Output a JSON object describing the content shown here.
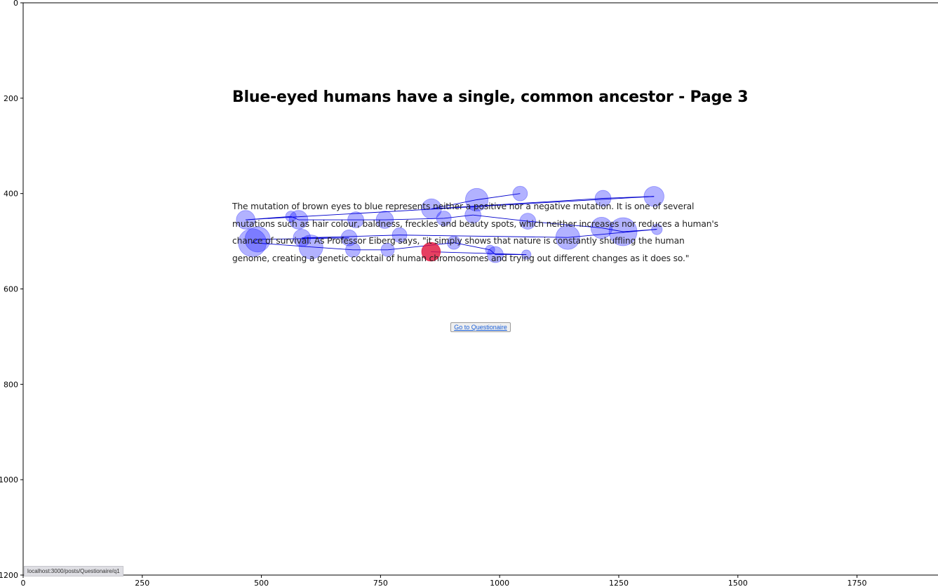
{
  "page": {
    "title": "Blue-eyed humans have a single, common ancestor - Page 3",
    "paragraph": "The mutation of brown eyes to blue represents neither a positive nor a negative mutation. It is one of several mutations such as hair colour, baldness, freckles and beauty spots, which neither increases nor reduces a human's chance of survival. As Professor Eiberg says, \"it simply shows that nature is constantly shuffling the human genome, creating a genetic cocktail of human chromosomes and trying out different changes as it does so.\"",
    "button_label": "Go to Questionaire",
    "status_url": "localhost:3000/posts/Questionaire/q1"
  },
  "chart_data": {
    "type": "scatter",
    "title": "",
    "xlabel": "",
    "ylabel": "",
    "xlim": [
      0,
      1920
    ],
    "ylim": [
      1200,
      0
    ],
    "x_ticks": [
      0,
      250,
      500,
      750,
      1000,
      1250,
      1500,
      1750
    ],
    "y_ticks": [
      0,
      200,
      400,
      600,
      800,
      1000,
      1200
    ],
    "grid": false,
    "colors": {
      "fixation": "#0000ff",
      "fixation_alpha": 0.3,
      "last_fixation": "#e0103a",
      "path": "#0000cc"
    },
    "fixations": [
      {
        "x": 1043,
        "y": 400,
        "r": 11
      },
      {
        "x": 952,
        "y": 413,
        "r": 17
      },
      {
        "x": 857,
        "y": 432,
        "r": 15
      },
      {
        "x": 1217,
        "y": 410,
        "r": 12
      },
      {
        "x": 1324,
        "y": 406,
        "r": 15
      },
      {
        "x": 467,
        "y": 455,
        "r": 14
      },
      {
        "x": 562,
        "y": 448,
        "r": 8
      },
      {
        "x": 578,
        "y": 455,
        "r": 14
      },
      {
        "x": 698,
        "y": 455,
        "r": 12
      },
      {
        "x": 759,
        "y": 455,
        "r": 13
      },
      {
        "x": 883,
        "y": 452,
        "r": 11
      },
      {
        "x": 944,
        "y": 445,
        "r": 12
      },
      {
        "x": 1059,
        "y": 458,
        "r": 12
      },
      {
        "x": 1214,
        "y": 472,
        "r": 16
      },
      {
        "x": 1259,
        "y": 480,
        "r": 21
      },
      {
        "x": 1330,
        "y": 475,
        "r": 8
      },
      {
        "x": 1143,
        "y": 492,
        "r": 18
      },
      {
        "x": 790,
        "y": 487,
        "r": 11
      },
      {
        "x": 585,
        "y": 493,
        "r": 13
      },
      {
        "x": 684,
        "y": 493,
        "r": 12
      },
      {
        "x": 492,
        "y": 496,
        "r": 19
      },
      {
        "x": 481,
        "y": 503,
        "r": 21
      },
      {
        "x": 604,
        "y": 512,
        "r": 18
      },
      {
        "x": 692,
        "y": 518,
        "r": 11
      },
      {
        "x": 765,
        "y": 518,
        "r": 10
      },
      {
        "x": 904,
        "y": 503,
        "r": 10
      },
      {
        "x": 980,
        "y": 518,
        "r": 7
      },
      {
        "x": 991,
        "y": 528,
        "r": 12
      },
      {
        "x": 1056,
        "y": 528,
        "r": 7
      },
      {
        "x": 856,
        "y": 522,
        "r": 14,
        "last": true
      }
    ]
  }
}
